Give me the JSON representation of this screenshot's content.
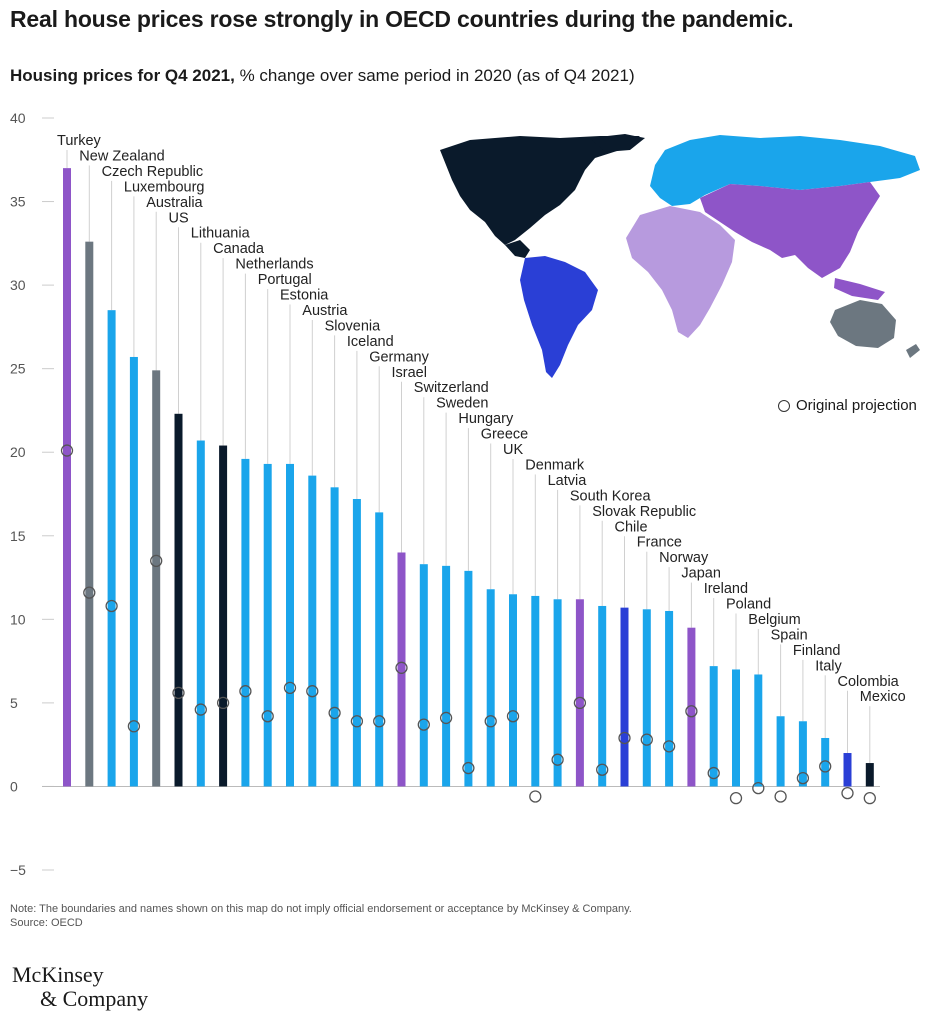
{
  "title": "Real house prices rose strongly in OECD countries during the pandemic.",
  "subtitle_bold": "Housing prices for Q4 2021,",
  "subtitle_rest": " % change over same period in 2020 (as of Q4 2021)",
  "legend_label": "Original projection",
  "note": "Note: The boundaries and names shown on this map do not imply official endorsement or acceptance by McKinsey & Company.",
  "source": "Source: OECD",
  "logo_line1": "McKinsey",
  "logo_line2": "& Company",
  "colors": {
    "purple": "#8e55c8",
    "gray": "#6c7780",
    "cyan": "#1aa5eb",
    "navy": "#0a1a2b",
    "blue": "#2a3fd6",
    "lilac": "#b79ade",
    "ring": "#555555"
  },
  "map_regions": [
    {
      "name": "North America",
      "color": "navy"
    },
    {
      "name": "South America",
      "color": "blue"
    },
    {
      "name": "Europe",
      "color": "cyan"
    },
    {
      "name": "Africa",
      "color": "lilac"
    },
    {
      "name": "Asia",
      "color": "purple"
    },
    {
      "name": "Oceania",
      "color": "gray"
    }
  ],
  "chart_data": {
    "type": "bar",
    "title": "Housing prices for Q4 2021, % change over same period in 2020 (as of Q4 2021)",
    "ylim": [
      -5,
      40
    ],
    "yticks": [
      -5,
      0,
      5,
      10,
      15,
      20,
      25,
      30,
      35,
      40
    ],
    "grid": false,
    "categories": [
      "Turkey",
      "New Zealand",
      "Czech Republic",
      "Luxembourg",
      "Australia",
      "US",
      "Lithuania",
      "Canada",
      "Netherlands",
      "Portugal",
      "Estonia",
      "Austria",
      "Slovenia",
      "Iceland",
      "Germany",
      "Israel",
      "Switzerland",
      "Sweden",
      "Hungary",
      "Greece",
      "UK",
      "Denmark",
      "Latvia",
      "South Korea",
      "Slovak Republic",
      "Chile",
      "France",
      "Norway",
      "Japan",
      "Ireland",
      "Poland",
      "Belgium",
      "Spain",
      "Finland",
      "Italy",
      "Colombia",
      "Mexico"
    ],
    "series": [
      {
        "name": "Housing prices % change",
        "values": [
          37.0,
          32.6,
          28.5,
          25.7,
          24.9,
          22.3,
          20.7,
          20.4,
          19.6,
          19.3,
          19.3,
          18.6,
          17.9,
          17.2,
          16.4,
          14.0,
          13.3,
          13.2,
          12.9,
          11.8,
          11.5,
          11.4,
          11.2,
          11.2,
          10.8,
          10.7,
          10.6,
          10.5,
          9.5,
          7.2,
          7.0,
          6.7,
          4.2,
          3.9,
          2.9,
          2.0,
          1.4
        ]
      },
      {
        "name": "Original projection",
        "values": [
          20.1,
          11.6,
          10.8,
          3.6,
          13.5,
          5.6,
          4.6,
          5.0,
          5.7,
          4.2,
          5.9,
          5.7,
          4.4,
          3.9,
          3.9,
          7.1,
          3.7,
          4.1,
          1.1,
          3.9,
          4.2,
          -0.6,
          1.6,
          5.0,
          1.0,
          2.9,
          2.8,
          2.4,
          4.5,
          0.8,
          -0.7,
          -0.1,
          -0.6,
          0.5,
          1.2,
          -0.4,
          -0.7
        ]
      }
    ],
    "bar_colors": [
      "purple",
      "gray",
      "cyan",
      "cyan",
      "gray",
      "navy",
      "cyan",
      "navy",
      "cyan",
      "cyan",
      "cyan",
      "cyan",
      "cyan",
      "cyan",
      "cyan",
      "purple",
      "cyan",
      "cyan",
      "cyan",
      "cyan",
      "cyan",
      "cyan",
      "cyan",
      "purple",
      "cyan",
      "blue",
      "cyan",
      "cyan",
      "purple",
      "cyan",
      "cyan",
      "cyan",
      "cyan",
      "cyan",
      "cyan",
      "blue",
      "navy"
    ]
  }
}
